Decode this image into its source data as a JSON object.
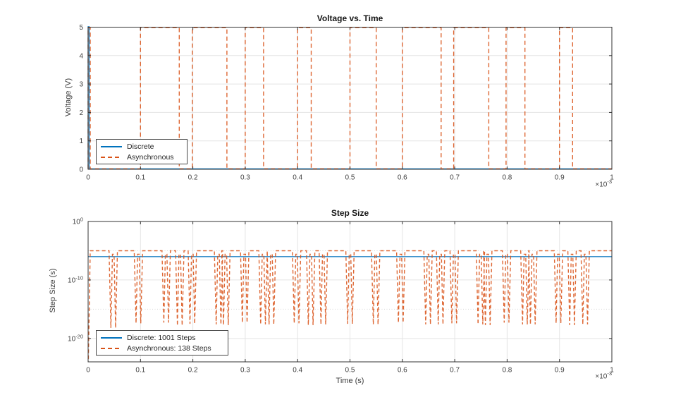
{
  "figure": {
    "background": "#ffffff",
    "axis_color": "#333333",
    "grid_color": "#e4e4e4",
    "minor_grid_color": "#d9d9d9",
    "tick_text_color": "#3f3f3f"
  },
  "chart_data": [
    {
      "type": "line",
      "title": "Voltage vs. Time",
      "xlabel": "",
      "ylabel": "Voltage (V)",
      "x_offset_label": {
        "prefix": "×10",
        "exp": "-3"
      },
      "xlim": [
        0,
        1
      ],
      "ylim": [
        0,
        5
      ],
      "grid": true,
      "xticks": [
        0,
        0.1,
        0.2,
        0.3,
        0.4,
        0.5,
        0.6,
        0.7,
        0.8,
        0.9,
        1
      ],
      "xtick_labels": [
        "0",
        "0.1",
        "0.2",
        "0.3",
        "0.4",
        "0.5",
        "0.6",
        "0.7",
        "0.8",
        "0.9",
        "1"
      ],
      "yticks": [
        0,
        1,
        2,
        3,
        4,
        5
      ],
      "ytick_labels": [
        "0",
        "1",
        "2",
        "3",
        "4",
        "5"
      ],
      "legend": {
        "position": "southwest",
        "entries": [
          {
            "label": "Discrete",
            "color": "#0072BD",
            "line": "solid"
          },
          {
            "label": "Asynchronous",
            "color": "#D95319",
            "line": "dashed"
          }
        ]
      },
      "series": [
        {
          "name": "Discrete",
          "color": "#0072BD",
          "line": "solid",
          "type": "points",
          "points": [
            [
              0,
              0
            ],
            [
              0,
              5
            ],
            [
              0.002,
              5
            ],
            [
              0.002,
              0
            ],
            [
              1,
              0
            ]
          ]
        },
        {
          "name": "Asynchronous",
          "color": "#D95319",
          "line": "dashed",
          "type": "pulses",
          "low": 0,
          "high": 5,
          "pulses": [
            [
              0,
              0.004
            ],
            [
              0.1,
              0.174
            ],
            [
              0.199,
              0.265
            ],
            [
              0.3,
              0.335
            ],
            [
              0.4,
              0.426
            ],
            [
              0.5,
              0.55
            ],
            [
              0.6,
              0.674
            ],
            [
              0.698,
              0.765
            ],
            [
              0.798,
              0.834
            ],
            [
              0.9,
              0.925
            ]
          ]
        }
      ]
    },
    {
      "type": "line",
      "title": "Step Size",
      "xlabel": "Time (s)",
      "ylabel": "Step Size (s)",
      "x_offset_label": {
        "prefix": "×10",
        "exp": "-3"
      },
      "xlim": [
        0,
        1
      ],
      "y_scale": "log",
      "y_exponent_range": [
        -24,
        0
      ],
      "grid": true,
      "xticks": [
        0,
        0.1,
        0.2,
        0.3,
        0.4,
        0.5,
        0.6,
        0.7,
        0.8,
        0.9,
        1
      ],
      "xtick_labels": [
        "0",
        "0.1",
        "0.2",
        "0.3",
        "0.4",
        "0.5",
        "0.6",
        "0.7",
        "0.8",
        "0.9",
        "1"
      ],
      "ytick_exponents": [
        0,
        -10,
        -20
      ],
      "ytick_base": "10",
      "major_grid_exponents": [
        -10,
        -20
      ],
      "minor_grid_exponents": [
        -5,
        -15
      ],
      "legend": {
        "position": "southwest",
        "entries": [
          {
            "label": "Discrete: 1001 Steps",
            "color": "#0072BD",
            "line": "solid"
          },
          {
            "label": "Asynchronous: 138 Steps",
            "color": "#D95319",
            "line": "dashed"
          }
        ]
      },
      "series": [
        {
          "name": "Discrete: 1001 Steps",
          "color": "#0072BD",
          "line": "solid",
          "type": "constant_exp",
          "exponent": -6
        },
        {
          "name": "Asynchronous: 138 Steps",
          "color": "#D95319",
          "line": "dashed",
          "type": "step_dips",
          "base_exponent": -5,
          "start": {
            "t": 0.0005,
            "exponent": -23.5
          },
          "dips": [
            {
              "t": 0.048,
              "exp": -18.2
            },
            {
              "t": 0.096,
              "exp": -17.4
            },
            {
              "t": 0.149,
              "exp": -17.3
            },
            {
              "t": 0.175,
              "exp": -17.8
            },
            {
              "t": 0.199,
              "exp": -17.5
            },
            {
              "t": 0.249,
              "exp": -17.6
            },
            {
              "t": 0.263,
              "exp": -17.7
            },
            {
              "t": 0.299,
              "exp": -17.3
            },
            {
              "t": 0.334,
              "exp": -17.6
            },
            {
              "t": 0.35,
              "exp": -17.6
            },
            {
              "t": 0.398,
              "exp": -17.4
            },
            {
              "t": 0.425,
              "exp": -17.7
            },
            {
              "t": 0.449,
              "exp": -17.6
            },
            {
              "t": 0.5,
              "exp": -17.5
            },
            {
              "t": 0.549,
              "exp": -17.6
            },
            {
              "t": 0.597,
              "exp": -17.3
            },
            {
              "t": 0.649,
              "exp": -17.6
            },
            {
              "t": 0.673,
              "exp": -17.6
            },
            {
              "t": 0.699,
              "exp": -17.4
            },
            {
              "t": 0.749,
              "exp": -17.6
            },
            {
              "t": 0.763,
              "exp": -17.7
            },
            {
              "t": 0.799,
              "exp": -17.3
            },
            {
              "t": 0.834,
              "exp": -17.6
            },
            {
              "t": 0.849,
              "exp": -17.6
            },
            {
              "t": 0.898,
              "exp": -17.4
            },
            {
              "t": 0.924,
              "exp": -17.7
            },
            {
              "t": 0.949,
              "exp": -17.6
            }
          ]
        }
      ]
    }
  ]
}
